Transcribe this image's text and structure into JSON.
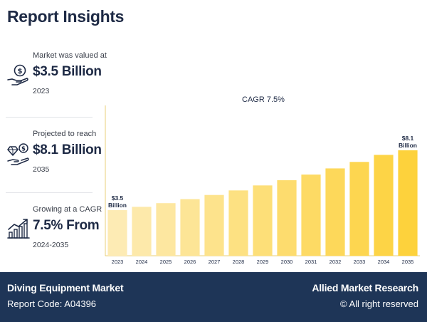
{
  "header": {
    "title": "Report Insights"
  },
  "stats": [
    {
      "label": "Market was valued at",
      "value": "$3.5 Billion",
      "sub": "2023",
      "icon": "money-hand-icon"
    },
    {
      "label": "Projected to reach",
      "value": "$8.1 Billion",
      "sub": "2035",
      "icon": "diamond-hand-icon"
    },
    {
      "label": "Growing at a CAGR",
      "value": "7.5% From",
      "sub": "2024-2035",
      "icon": "growth-chart-icon"
    }
  ],
  "footer": {
    "report_title": "Diving Equipment Market",
    "report_code": "Report Code: A04396",
    "brand": "Allied Market Research",
    "rights": "© All right reserved"
  },
  "colors": {
    "navy": "#1e3557",
    "bar_start": "#fdebb4",
    "bar_end": "#fdd23c",
    "axis": "#e8cf7a"
  },
  "chart_data": {
    "type": "bar",
    "title": "CAGR 7.5%",
    "categories": [
      "2023",
      "2024",
      "2025",
      "2026",
      "2027",
      "2028",
      "2029",
      "2030",
      "2031",
      "2032",
      "2033",
      "2034",
      "2035"
    ],
    "values": [
      3.5,
      3.76,
      4.04,
      4.35,
      4.67,
      5.02,
      5.4,
      5.8,
      6.24,
      6.71,
      7.21,
      7.75,
      8.1
    ],
    "annotations": [
      {
        "category": "2023",
        "lines": [
          "$3.5",
          "Billion"
        ]
      },
      {
        "category": "2035",
        "lines": [
          "$8.1",
          "Billion"
        ]
      }
    ],
    "ylim": [
      0,
      10
    ],
    "xlabel": "",
    "ylabel": "",
    "grid": false,
    "legend": "none"
  }
}
